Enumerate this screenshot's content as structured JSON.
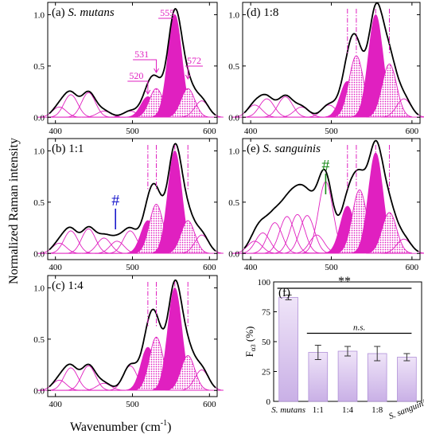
{
  "figure": {
    "y_axis_label": "Normalized Raman intensity",
    "x_axis_label": "Wavenumber (cm",
    "x_axis_label_sup": "-1",
    "x_axis_label_close": ")",
    "colors": {
      "magenta": "#e020c0",
      "curve": "#000000",
      "dash": "#e020c0",
      "bar_top": "#e6d6f3",
      "bar_bottom": "#c9b0e6",
      "hash_blue": "#1a1acc",
      "hash_green": "#1a8a1a"
    }
  },
  "chart_data": [
    {
      "id": "a",
      "type": "area",
      "panel_label": "(a)",
      "panel_title": "S. mutans",
      "xlim": [
        390,
        610
      ],
      "ylim": [
        -0.06,
        1.12
      ],
      "xticks": [
        "400",
        "500",
        "600"
      ],
      "yticks": [
        "0.0",
        "0.5",
        "1.0"
      ],
      "peaks_cm-1": [
        405,
        420,
        443,
        463,
        497,
        520,
        531,
        555,
        572,
        590
      ],
      "peak_heights": [
        0.1,
        0.22,
        0.24,
        0.06,
        0.06,
        0.2,
        0.28,
        1.0,
        0.28,
        0.16
      ],
      "annotations": [
        {
          "text": "520",
          "x": 520
        },
        {
          "text": "531",
          "x": 531
        },
        {
          "text": "555",
          "x": 555
        },
        {
          "text": "572",
          "x": 572
        }
      ]
    },
    {
      "id": "b",
      "type": "area",
      "panel_label": "(b)",
      "panel_title": "1:1",
      "xlim": [
        390,
        610
      ],
      "ylim": [
        -0.06,
        1.12
      ],
      "xticks": [
        "400",
        "500",
        "600"
      ],
      "yticks": [
        "0.0",
        "0.5",
        "1.0"
      ],
      "peaks_cm-1": [
        405,
        420,
        443,
        463,
        480,
        497,
        520,
        531,
        555,
        572,
        590
      ],
      "peak_heights": [
        0.1,
        0.22,
        0.24,
        0.15,
        0.12,
        0.22,
        0.32,
        0.48,
        1.0,
        0.32,
        0.18
      ],
      "marker": {
        "symbol": "#",
        "x": 478
      }
    },
    {
      "id": "c",
      "type": "area",
      "panel_label": "(c)",
      "panel_title": "1:4",
      "xlim": [
        390,
        610
      ],
      "ylim": [
        -0.06,
        1.12
      ],
      "xticks": [
        "400",
        "500",
        "600"
      ],
      "yticks": [
        "0.0",
        "0.5",
        "1.0"
      ],
      "peaks_cm-1": [
        405,
        420,
        443,
        463,
        497,
        520,
        531,
        555,
        572,
        590
      ],
      "peak_heights": [
        0.1,
        0.22,
        0.24,
        0.07,
        0.24,
        0.42,
        0.52,
        1.0,
        0.34,
        0.2
      ]
    },
    {
      "id": "d",
      "type": "area",
      "panel_label": "(d)",
      "panel_title": "1:8",
      "xlim": [
        390,
        610
      ],
      "ylim": [
        -0.06,
        1.12
      ],
      "xticks": [
        "400",
        "500",
        "600"
      ],
      "yticks": [
        "0.0",
        "0.5",
        "1.0"
      ],
      "peaks_cm-1": [
        405,
        420,
        443,
        463,
        497,
        520,
        531,
        555,
        572,
        590
      ],
      "peak_heights": [
        0.12,
        0.18,
        0.2,
        0.1,
        0.12,
        0.35,
        0.6,
        1.0,
        0.52,
        0.18
      ]
    },
    {
      "id": "e",
      "type": "area",
      "panel_label": "(e)",
      "panel_title": "S. sanguinis",
      "xlim": [
        390,
        610
      ],
      "ylim": [
        -0.06,
        1.12
      ],
      "xticks": [
        "400",
        "500",
        "600"
      ],
      "yticks": [
        "0.0",
        "0.5",
        "1.0"
      ],
      "peaks_cm-1": [
        405,
        415,
        430,
        445,
        458,
        470,
        482,
        493,
        520,
        535,
        555,
        572,
        590
      ],
      "peak_heights": [
        0.12,
        0.2,
        0.3,
        0.36,
        0.38,
        0.37,
        0.18,
        0.7,
        0.46,
        0.62,
        0.98,
        0.4,
        0.14
      ],
      "marker": {
        "symbol": "#",
        "x": 493
      }
    },
    {
      "id": "f",
      "type": "bar",
      "panel_label": "(f)",
      "ylabel": "F",
      "ylabel_sub": "α",
      "ylabel_sub2": "3",
      "ylabel_unit": " (%)",
      "categories": [
        "S. mutans",
        "1:1",
        "1:4",
        "1:8",
        "S. sanguinis"
      ],
      "values": [
        87,
        41,
        42,
        40,
        37
      ],
      "errors": [
        2,
        6,
        4,
        6,
        3
      ],
      "ylim": [
        0,
        100
      ],
      "yticks": [
        "0",
        "25",
        "50",
        "75",
        "100"
      ],
      "significance": [
        {
          "text": "**",
          "from": 0,
          "to": 4
        },
        {
          "text": "n.s.",
          "from": 1,
          "to": 4
        }
      ]
    }
  ]
}
